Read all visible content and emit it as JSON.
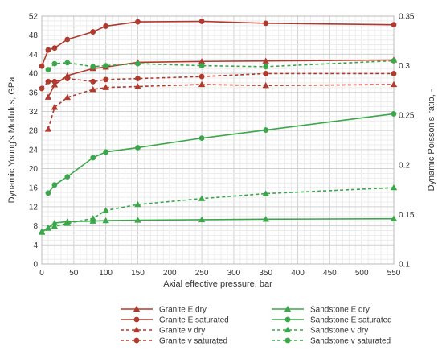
{
  "chart_data": {
    "type": "line",
    "title": "",
    "xlabel": "Axial effective pressure, bar",
    "ylabel": "Dynamic Young's Modulus, GPa",
    "y2label": "Dynamic Poisson's ratio, -",
    "xlim": [
      0,
      550
    ],
    "ylim": [
      0,
      52
    ],
    "y2lim": [
      0.1,
      0.35
    ],
    "x_ticks": [
      "0",
      "50",
      "100",
      "150",
      "200",
      "250",
      "300",
      "350",
      "400",
      "450",
      "500",
      "550"
    ],
    "y_ticks": [
      "0",
      "4",
      "8",
      "12",
      "16",
      "20",
      "24",
      "28",
      "32",
      "36",
      "40",
      "44",
      "48",
      "52"
    ],
    "y2_ticks": [
      "0.1",
      "0.15",
      "0.2",
      "0.25",
      "0.3",
      "0.35"
    ],
    "grid": true,
    "legend_position": "bottom",
    "colors": {
      "granite": "#b03a2e",
      "sandstone": "#3aa84a"
    },
    "series": [
      {
        "name": "Granite E dry",
        "axis": "left",
        "color": "#b03a2e",
        "dash": "solid",
        "marker": "triangle",
        "x": [
          10,
          20,
          40,
          80,
          100,
          150,
          250,
          350,
          550
        ],
        "y": [
          35.0,
          37.6,
          39.5,
          41.0,
          41.3,
          42.3,
          42.5,
          42.6,
          42.8
        ]
      },
      {
        "name": "Granite E saturated",
        "axis": "left",
        "color": "#b03a2e",
        "dash": "solid",
        "marker": "circle",
        "x": [
          0,
          10,
          20,
          40,
          80,
          100,
          150,
          250,
          350,
          550
        ],
        "y": [
          41.5,
          44.9,
          45.3,
          47.1,
          48.7,
          49.9,
          50.8,
          50.9,
          50.5,
          50.2
        ]
      },
      {
        "name": "Granite v dry",
        "axis": "right",
        "color": "#b03a2e",
        "dash": "dashed",
        "marker": "triangle",
        "x": [
          10,
          20,
          40,
          80,
          100,
          150,
          250,
          350,
          550
        ],
        "y": [
          0.236,
          0.258,
          0.268,
          0.276,
          0.278,
          0.279,
          0.281,
          0.28,
          0.281
        ]
      },
      {
        "name": "Granite v saturated",
        "axis": "right",
        "color": "#b03a2e",
        "dash": "dashed",
        "marker": "circle",
        "x": [
          0,
          10,
          20,
          40,
          80,
          100,
          150,
          250,
          350,
          550
        ],
        "y": [
          0.277,
          0.284,
          0.284,
          0.287,
          0.284,
          0.286,
          0.287,
          0.289,
          0.292,
          0.292
        ]
      },
      {
        "name": "Sandstone E dry",
        "axis": "left",
        "color": "#3aa84a",
        "dash": "solid",
        "marker": "triangle",
        "x": [
          0,
          10,
          20,
          40,
          80,
          100,
          150,
          250,
          350,
          550
        ],
        "y": [
          6.8,
          7.6,
          8.6,
          8.9,
          9.0,
          9.1,
          9.2,
          9.3,
          9.4,
          9.5
        ]
      },
      {
        "name": "Sandstone E saturated",
        "axis": "left",
        "color": "#3aa84a",
        "dash": "solid",
        "marker": "circle",
        "x": [
          10,
          20,
          40,
          80,
          100,
          150,
          250,
          350,
          550
        ],
        "y": [
          14.9,
          16.6,
          18.3,
          22.3,
          23.5,
          24.4,
          26.4,
          28.1,
          31.5
        ]
      },
      {
        "name": "Sandstone v dry",
        "axis": "right",
        "color": "#3aa84a",
        "dash": "dashed",
        "marker": "triangle",
        "x": [
          0,
          10,
          20,
          40,
          80,
          100,
          150,
          250,
          350,
          550
        ],
        "y": [
          0.132,
          0.136,
          0.138,
          0.141,
          0.146,
          0.154,
          0.16,
          0.166,
          0.171,
          0.177
        ]
      },
      {
        "name": "Sandstone v saturated",
        "axis": "right",
        "color": "#3aa84a",
        "dash": "dashed",
        "marker": "circle",
        "x": [
          10,
          20,
          40,
          80,
          100,
          150,
          250,
          350,
          550
        ],
        "y": [
          0.296,
          0.302,
          0.303,
          0.299,
          0.3,
          0.302,
          0.3,
          0.299,
          0.305
        ]
      }
    ]
  }
}
